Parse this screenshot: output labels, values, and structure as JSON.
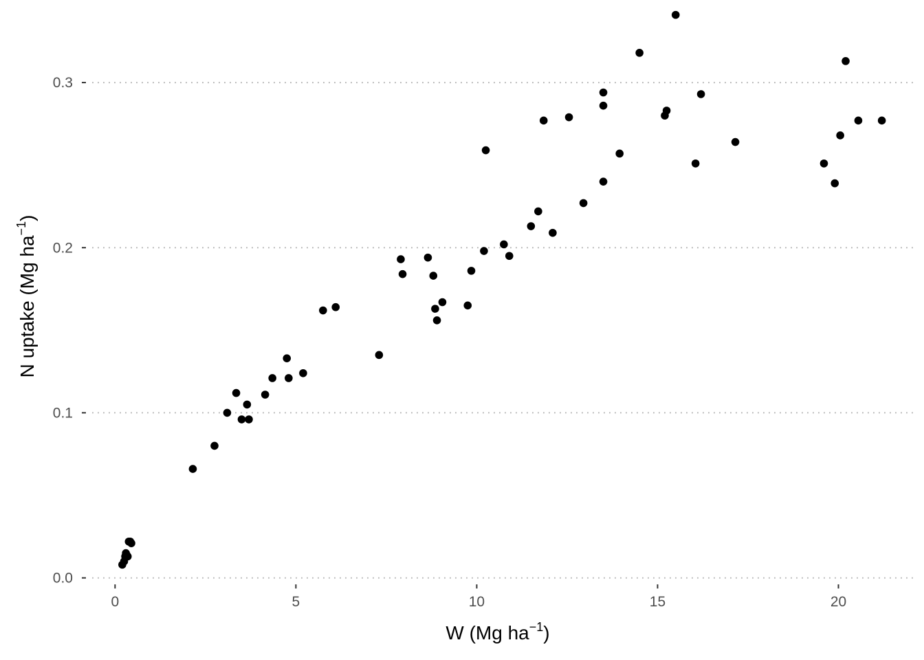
{
  "chart_data": {
    "type": "scatter",
    "xlabel": {
      "base": "W (Mg ha",
      "sup": "−1",
      "close": ")"
    },
    "ylabel": {
      "base": "N uptake (Mg ha",
      "sup": "−1",
      "close": ")"
    },
    "xlim": [
      -0.9,
      22.1
    ],
    "ylim": [
      -0.006,
      0.35
    ],
    "xticks": [
      0,
      5,
      10,
      15,
      20
    ],
    "xtick_labels": [
      "0",
      "5",
      "10",
      "15",
      "20"
    ],
    "yticks": [
      0.0,
      0.1,
      0.2,
      0.3
    ],
    "ytick_labels": [
      "0.0",
      "0.1",
      "0.2",
      "0.3"
    ],
    "grid": {
      "major_y": true,
      "style": "dotted"
    },
    "point_color": "#000000",
    "points": [
      {
        "x": 0.2,
        "y": 0.008
      },
      {
        "x": 0.25,
        "y": 0.01
      },
      {
        "x": 0.28,
        "y": 0.013
      },
      {
        "x": 0.3,
        "y": 0.015
      },
      {
        "x": 0.32,
        "y": 0.014
      },
      {
        "x": 0.35,
        "y": 0.013
      },
      {
        "x": 0.38,
        "y": 0.022
      },
      {
        "x": 0.42,
        "y": 0.022
      },
      {
        "x": 0.45,
        "y": 0.021
      },
      {
        "x": 2.15,
        "y": 0.066
      },
      {
        "x": 2.75,
        "y": 0.08
      },
      {
        "x": 3.1,
        "y": 0.1
      },
      {
        "x": 3.35,
        "y": 0.112
      },
      {
        "x": 3.5,
        "y": 0.096
      },
      {
        "x": 3.65,
        "y": 0.105
      },
      {
        "x": 3.7,
        "y": 0.096
      },
      {
        "x": 4.15,
        "y": 0.111
      },
      {
        "x": 4.35,
        "y": 0.121
      },
      {
        "x": 4.75,
        "y": 0.133
      },
      {
        "x": 4.8,
        "y": 0.121
      },
      {
        "x": 5.2,
        "y": 0.124
      },
      {
        "x": 5.75,
        "y": 0.162
      },
      {
        "x": 6.1,
        "y": 0.164
      },
      {
        "x": 7.3,
        "y": 0.135
      },
      {
        "x": 7.9,
        "y": 0.193
      },
      {
        "x": 7.95,
        "y": 0.184
      },
      {
        "x": 8.65,
        "y": 0.194
      },
      {
        "x": 8.8,
        "y": 0.183
      },
      {
        "x": 8.85,
        "y": 0.163
      },
      {
        "x": 8.9,
        "y": 0.156
      },
      {
        "x": 9.05,
        "y": 0.167
      },
      {
        "x": 9.75,
        "y": 0.165
      },
      {
        "x": 9.85,
        "y": 0.186
      },
      {
        "x": 10.2,
        "y": 0.198
      },
      {
        "x": 10.25,
        "y": 0.259
      },
      {
        "x": 10.75,
        "y": 0.202
      },
      {
        "x": 10.9,
        "y": 0.195
      },
      {
        "x": 11.5,
        "y": 0.213
      },
      {
        "x": 11.7,
        "y": 0.222
      },
      {
        "x": 11.85,
        "y": 0.277
      },
      {
        "x": 12.1,
        "y": 0.209
      },
      {
        "x": 12.55,
        "y": 0.279
      },
      {
        "x": 12.95,
        "y": 0.227
      },
      {
        "x": 13.5,
        "y": 0.294
      },
      {
        "x": 13.5,
        "y": 0.286
      },
      {
        "x": 13.5,
        "y": 0.24
      },
      {
        "x": 13.95,
        "y": 0.257
      },
      {
        "x": 14.5,
        "y": 0.318
      },
      {
        "x": 15.2,
        "y": 0.28
      },
      {
        "x": 15.25,
        "y": 0.283
      },
      {
        "x": 15.5,
        "y": 0.341
      },
      {
        "x": 16.05,
        "y": 0.251
      },
      {
        "x": 16.2,
        "y": 0.293
      },
      {
        "x": 17.15,
        "y": 0.264
      },
      {
        "x": 19.6,
        "y": 0.251
      },
      {
        "x": 19.9,
        "y": 0.239
      },
      {
        "x": 20.05,
        "y": 0.268
      },
      {
        "x": 20.2,
        "y": 0.313
      },
      {
        "x": 20.55,
        "y": 0.277
      },
      {
        "x": 21.2,
        "y": 0.277
      }
    ]
  }
}
